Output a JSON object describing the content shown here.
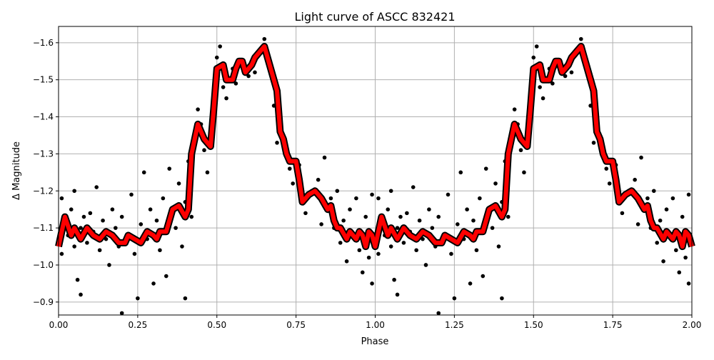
{
  "chart_data": {
    "type": "scatter",
    "title": "Light curve of ASCC 832421",
    "xlabel": "Phase",
    "ylabel": "Δ Magnitude",
    "xlim": [
      0,
      2
    ],
    "ylim": [
      -1.644,
      -0.865
    ],
    "y_inverted": true,
    "grid": true,
    "x_ticks": [
      "0.00",
      "0.25",
      "0.50",
      "0.75",
      "1.00",
      "1.25",
      "1.50",
      "1.75",
      "2.00"
    ],
    "x_tick_values": [
      0,
      0.25,
      0.5,
      0.75,
      1,
      1.25,
      1.5,
      1.75,
      2
    ],
    "y_ticks": [
      "−1.6",
      "−1.5",
      "−1.4",
      "−1.3",
      "−1.2",
      "−1.1",
      "−1.0",
      "−0.9"
    ],
    "y_tick_values": [
      -1.6,
      -1.5,
      -1.4,
      -1.3,
      -1.2,
      -1.1,
      -1.0,
      -0.9
    ],
    "phase_repeated": true,
    "colors": {
      "points": "#000000",
      "model": "#ff0000",
      "model_outline": "#000000",
      "grid": "#b0b0b0"
    },
    "series": [
      {
        "kind": "points",
        "data": [
          [
            0.01,
            -1.03
          ],
          [
            0.01,
            -1.18
          ],
          [
            0.02,
            -1.12
          ],
          [
            0.03,
            -1.08
          ],
          [
            0.04,
            -1.15
          ],
          [
            0.05,
            -1.2
          ],
          [
            0.05,
            -1.05
          ],
          [
            0.06,
            -0.96
          ],
          [
            0.07,
            -1.1
          ],
          [
            0.07,
            -0.92
          ],
          [
            0.08,
            -1.13
          ],
          [
            0.09,
            -1.06
          ],
          [
            0.1,
            -1.14
          ],
          [
            0.11,
            -1.09
          ],
          [
            0.12,
            -1.21
          ],
          [
            0.13,
            -1.04
          ],
          [
            0.14,
            -1.12
          ],
          [
            0.15,
            -1.07
          ],
          [
            0.16,
            -1.0
          ],
          [
            0.17,
            -1.15
          ],
          [
            0.18,
            -1.1
          ],
          [
            0.19,
            -1.05
          ],
          [
            0.2,
            -0.87
          ],
          [
            0.2,
            -1.13
          ],
          [
            0.22,
            -1.08
          ],
          [
            0.23,
            -1.19
          ],
          [
            0.24,
            -1.03
          ],
          [
            0.25,
            -0.91
          ],
          [
            0.26,
            -1.11
          ],
          [
            0.27,
            -1.25
          ],
          [
            0.28,
            -1.07
          ],
          [
            0.29,
            -1.15
          ],
          [
            0.3,
            -0.95
          ],
          [
            0.31,
            -1.12
          ],
          [
            0.32,
            -1.04
          ],
          [
            0.33,
            -1.18
          ],
          [
            0.34,
            -0.97
          ],
          [
            0.35,
            -1.26
          ],
          [
            0.36,
            -1.14
          ],
          [
            0.37,
            -1.1
          ],
          [
            0.38,
            -1.22
          ],
          [
            0.39,
            -1.05
          ],
          [
            0.4,
            -0.91
          ],
          [
            0.4,
            -1.17
          ],
          [
            0.41,
            -1.28
          ],
          [
            0.42,
            -1.13
          ],
          [
            0.44,
            -1.42
          ],
          [
            0.45,
            -1.38
          ],
          [
            0.46,
            -1.31
          ],
          [
            0.47,
            -1.25
          ],
          [
            0.48,
            -1.35
          ],
          [
            0.49,
            -1.45
          ],
          [
            0.5,
            -1.56
          ],
          [
            0.51,
            -1.59
          ],
          [
            0.52,
            -1.48
          ],
          [
            0.53,
            -1.45
          ],
          [
            0.55,
            -1.53
          ],
          [
            0.56,
            -1.49
          ],
          [
            0.58,
            -1.55
          ],
          [
            0.59,
            -1.52
          ],
          [
            0.6,
            -1.51
          ],
          [
            0.62,
            -1.52
          ],
          [
            0.64,
            -1.58
          ],
          [
            0.65,
            -1.61
          ],
          [
            0.66,
            -1.57
          ],
          [
            0.68,
            -1.43
          ],
          [
            0.69,
            -1.33
          ],
          [
            0.7,
            -1.39
          ],
          [
            0.71,
            -1.33
          ],
          [
            0.72,
            -1.3
          ],
          [
            0.73,
            -1.26
          ],
          [
            0.74,
            -1.22
          ],
          [
            0.76,
            -1.27
          ],
          [
            0.77,
            -1.18
          ],
          [
            0.78,
            -1.14
          ],
          [
            0.8,
            -1.2
          ],
          [
            0.82,
            -1.23
          ],
          [
            0.83,
            -1.11
          ],
          [
            0.84,
            -1.29
          ],
          [
            0.86,
            -1.18
          ],
          [
            0.87,
            -1.1
          ],
          [
            0.88,
            -1.2
          ],
          [
            0.89,
            -1.06
          ],
          [
            0.9,
            -1.12
          ],
          [
            0.91,
            -1.01
          ],
          [
            0.92,
            -1.15
          ],
          [
            0.93,
            -1.08
          ],
          [
            0.94,
            -1.18
          ],
          [
            0.95,
            -1.04
          ],
          [
            0.96,
            -0.98
          ],
          [
            0.97,
            -1.13
          ],
          [
            0.98,
            -1.02
          ],
          [
            0.99,
            -0.95
          ],
          [
            0.99,
            -1.19
          ]
        ]
      },
      {
        "kind": "model",
        "data": [
          [
            0,
            -1.05
          ],
          [
            0.02,
            -1.13
          ],
          [
            0.04,
            -1.08
          ],
          [
            0.05,
            -1.1
          ],
          [
            0.07,
            -1.07
          ],
          [
            0.09,
            -1.1
          ],
          [
            0.11,
            -1.08
          ],
          [
            0.13,
            -1.07
          ],
          [
            0.15,
            -1.09
          ],
          [
            0.17,
            -1.08
          ],
          [
            0.19,
            -1.06
          ],
          [
            0.21,
            -1.06
          ],
          [
            0.22,
            -1.08
          ],
          [
            0.24,
            -1.07
          ],
          [
            0.26,
            -1.06
          ],
          [
            0.28,
            -1.09
          ],
          [
            0.3,
            -1.08
          ],
          [
            0.31,
            -1.07
          ],
          [
            0.32,
            -1.09
          ],
          [
            0.34,
            -1.09
          ],
          [
            0.36,
            -1.15
          ],
          [
            0.38,
            -1.16
          ],
          [
            0.4,
            -1.13
          ],
          [
            0.41,
            -1.15
          ],
          [
            0.42,
            -1.3
          ],
          [
            0.44,
            -1.38
          ],
          [
            0.46,
            -1.34
          ],
          [
            0.47,
            -1.33
          ],
          [
            0.48,
            -1.32
          ],
          [
            0.49,
            -1.42
          ],
          [
            0.5,
            -1.53
          ],
          [
            0.52,
            -1.54
          ],
          [
            0.53,
            -1.5
          ],
          [
            0.55,
            -1.5
          ],
          [
            0.56,
            -1.53
          ],
          [
            0.57,
            -1.55
          ],
          [
            0.58,
            -1.55
          ],
          [
            0.59,
            -1.52
          ],
          [
            0.61,
            -1.54
          ],
          [
            0.62,
            -1.56
          ],
          [
            0.64,
            -1.58
          ],
          [
            0.65,
            -1.59
          ],
          [
            0.66,
            -1.56
          ],
          [
            0.68,
            -1.5
          ],
          [
            0.69,
            -1.47
          ],
          [
            0.7,
            -1.36
          ],
          [
            0.71,
            -1.34
          ],
          [
            0.72,
            -1.3
          ],
          [
            0.73,
            -1.28
          ],
          [
            0.75,
            -1.28
          ],
          [
            0.76,
            -1.23
          ],
          [
            0.77,
            -1.17
          ],
          [
            0.79,
            -1.19
          ],
          [
            0.81,
            -1.2
          ],
          [
            0.83,
            -1.18
          ],
          [
            0.85,
            -1.15
          ],
          [
            0.86,
            -1.16
          ],
          [
            0.87,
            -1.12
          ],
          [
            0.88,
            -1.1
          ],
          [
            0.89,
            -1.1
          ],
          [
            0.91,
            -1.07
          ],
          [
            0.92,
            -1.09
          ],
          [
            0.94,
            -1.07
          ],
          [
            0.95,
            -1.09
          ],
          [
            0.96,
            -1.08
          ],
          [
            0.97,
            -1.05
          ],
          [
            0.98,
            -1.09
          ],
          [
            0.99,
            -1.08
          ],
          [
            1.0,
            -1.05
          ]
        ]
      }
    ]
  }
}
